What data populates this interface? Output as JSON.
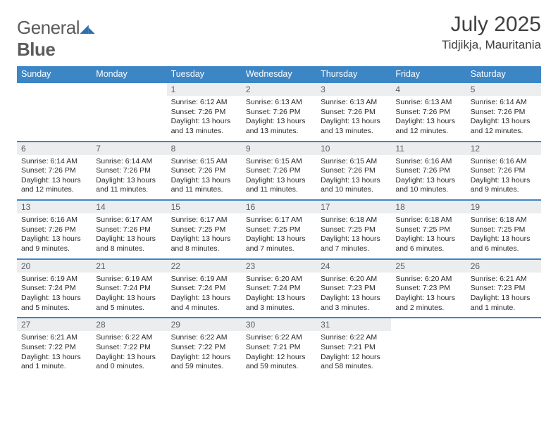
{
  "brand": {
    "word1": "General",
    "word2": "Blue"
  },
  "title": "July 2025",
  "location": "Tidjikja, Mauritania",
  "colors": {
    "header_bg": "#3d86c6",
    "header_text": "#ffffff",
    "daynum_bg": "#ebedef",
    "daynum_text": "#5a5f66",
    "body_text": "#2a2a2a",
    "rule": "#3d86c6",
    "logo_text": "#5c5c5c",
    "logo_mark": "#2f6fb0"
  },
  "day_headers": [
    "Sunday",
    "Monday",
    "Tuesday",
    "Wednesday",
    "Thursday",
    "Friday",
    "Saturday"
  ],
  "weeks": [
    [
      null,
      null,
      {
        "n": "1",
        "sr": "6:12 AM",
        "ss": "7:26 PM",
        "dl": "13 hours and 13 minutes."
      },
      {
        "n": "2",
        "sr": "6:13 AM",
        "ss": "7:26 PM",
        "dl": "13 hours and 13 minutes."
      },
      {
        "n": "3",
        "sr": "6:13 AM",
        "ss": "7:26 PM",
        "dl": "13 hours and 13 minutes."
      },
      {
        "n": "4",
        "sr": "6:13 AM",
        "ss": "7:26 PM",
        "dl": "13 hours and 12 minutes."
      },
      {
        "n": "5",
        "sr": "6:14 AM",
        "ss": "7:26 PM",
        "dl": "13 hours and 12 minutes."
      }
    ],
    [
      {
        "n": "6",
        "sr": "6:14 AM",
        "ss": "7:26 PM",
        "dl": "13 hours and 12 minutes."
      },
      {
        "n": "7",
        "sr": "6:14 AM",
        "ss": "7:26 PM",
        "dl": "13 hours and 11 minutes."
      },
      {
        "n": "8",
        "sr": "6:15 AM",
        "ss": "7:26 PM",
        "dl": "13 hours and 11 minutes."
      },
      {
        "n": "9",
        "sr": "6:15 AM",
        "ss": "7:26 PM",
        "dl": "13 hours and 11 minutes."
      },
      {
        "n": "10",
        "sr": "6:15 AM",
        "ss": "7:26 PM",
        "dl": "13 hours and 10 minutes."
      },
      {
        "n": "11",
        "sr": "6:16 AM",
        "ss": "7:26 PM",
        "dl": "13 hours and 10 minutes."
      },
      {
        "n": "12",
        "sr": "6:16 AM",
        "ss": "7:26 PM",
        "dl": "13 hours and 9 minutes."
      }
    ],
    [
      {
        "n": "13",
        "sr": "6:16 AM",
        "ss": "7:26 PM",
        "dl": "13 hours and 9 minutes."
      },
      {
        "n": "14",
        "sr": "6:17 AM",
        "ss": "7:26 PM",
        "dl": "13 hours and 8 minutes."
      },
      {
        "n": "15",
        "sr": "6:17 AM",
        "ss": "7:25 PM",
        "dl": "13 hours and 8 minutes."
      },
      {
        "n": "16",
        "sr": "6:17 AM",
        "ss": "7:25 PM",
        "dl": "13 hours and 7 minutes."
      },
      {
        "n": "17",
        "sr": "6:18 AM",
        "ss": "7:25 PM",
        "dl": "13 hours and 7 minutes."
      },
      {
        "n": "18",
        "sr": "6:18 AM",
        "ss": "7:25 PM",
        "dl": "13 hours and 6 minutes."
      },
      {
        "n": "19",
        "sr": "6:18 AM",
        "ss": "7:25 PM",
        "dl": "13 hours and 6 minutes."
      }
    ],
    [
      {
        "n": "20",
        "sr": "6:19 AM",
        "ss": "7:24 PM",
        "dl": "13 hours and 5 minutes."
      },
      {
        "n": "21",
        "sr": "6:19 AM",
        "ss": "7:24 PM",
        "dl": "13 hours and 5 minutes."
      },
      {
        "n": "22",
        "sr": "6:19 AM",
        "ss": "7:24 PM",
        "dl": "13 hours and 4 minutes."
      },
      {
        "n": "23",
        "sr": "6:20 AM",
        "ss": "7:24 PM",
        "dl": "13 hours and 3 minutes."
      },
      {
        "n": "24",
        "sr": "6:20 AM",
        "ss": "7:23 PM",
        "dl": "13 hours and 3 minutes."
      },
      {
        "n": "25",
        "sr": "6:20 AM",
        "ss": "7:23 PM",
        "dl": "13 hours and 2 minutes."
      },
      {
        "n": "26",
        "sr": "6:21 AM",
        "ss": "7:23 PM",
        "dl": "13 hours and 1 minute."
      }
    ],
    [
      {
        "n": "27",
        "sr": "6:21 AM",
        "ss": "7:22 PM",
        "dl": "13 hours and 1 minute."
      },
      {
        "n": "28",
        "sr": "6:22 AM",
        "ss": "7:22 PM",
        "dl": "13 hours and 0 minutes."
      },
      {
        "n": "29",
        "sr": "6:22 AM",
        "ss": "7:22 PM",
        "dl": "12 hours and 59 minutes."
      },
      {
        "n": "30",
        "sr": "6:22 AM",
        "ss": "7:21 PM",
        "dl": "12 hours and 59 minutes."
      },
      {
        "n": "31",
        "sr": "6:22 AM",
        "ss": "7:21 PM",
        "dl": "12 hours and 58 minutes."
      },
      null,
      null
    ]
  ],
  "labels": {
    "sunrise": "Sunrise:",
    "sunset": "Sunset:",
    "daylight": "Daylight:"
  }
}
